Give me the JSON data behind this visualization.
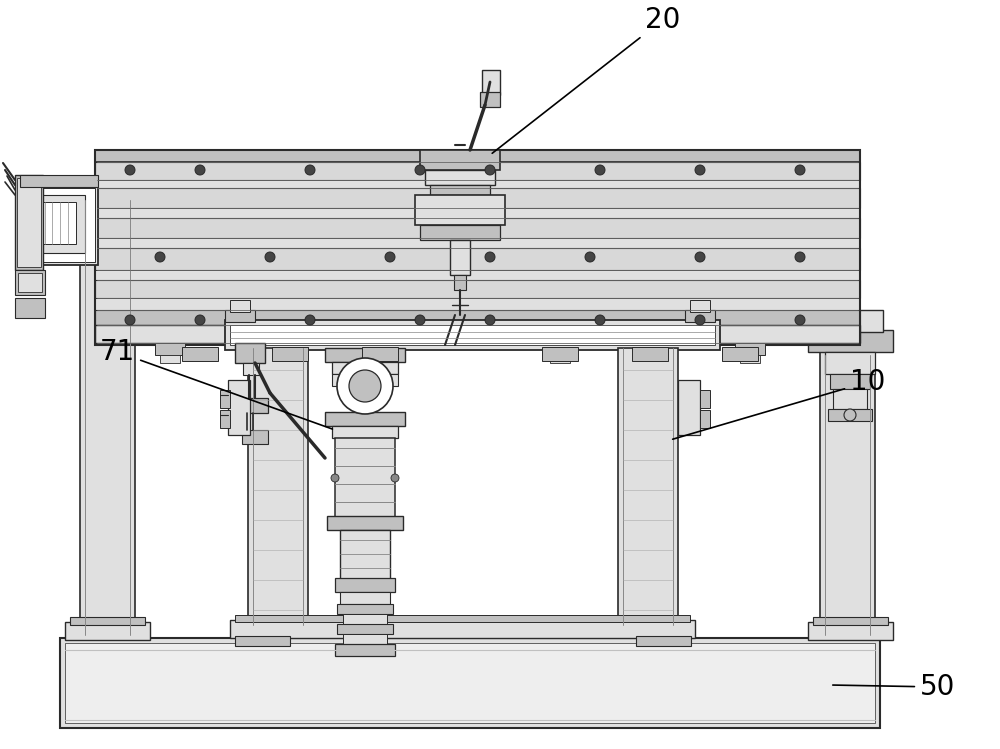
{
  "bg_color": "#ffffff",
  "lc": "#2a2a2a",
  "fl": "#e0e0e0",
  "fm": "#c0c0c0",
  "fd": "#888888",
  "fg": "#b0b0b0",
  "label_20": "20",
  "label_10": "10",
  "label_71": "71",
  "label_50": "50",
  "lfs": 20,
  "figsize": [
    10.0,
    7.49
  ],
  "dpi": 100
}
